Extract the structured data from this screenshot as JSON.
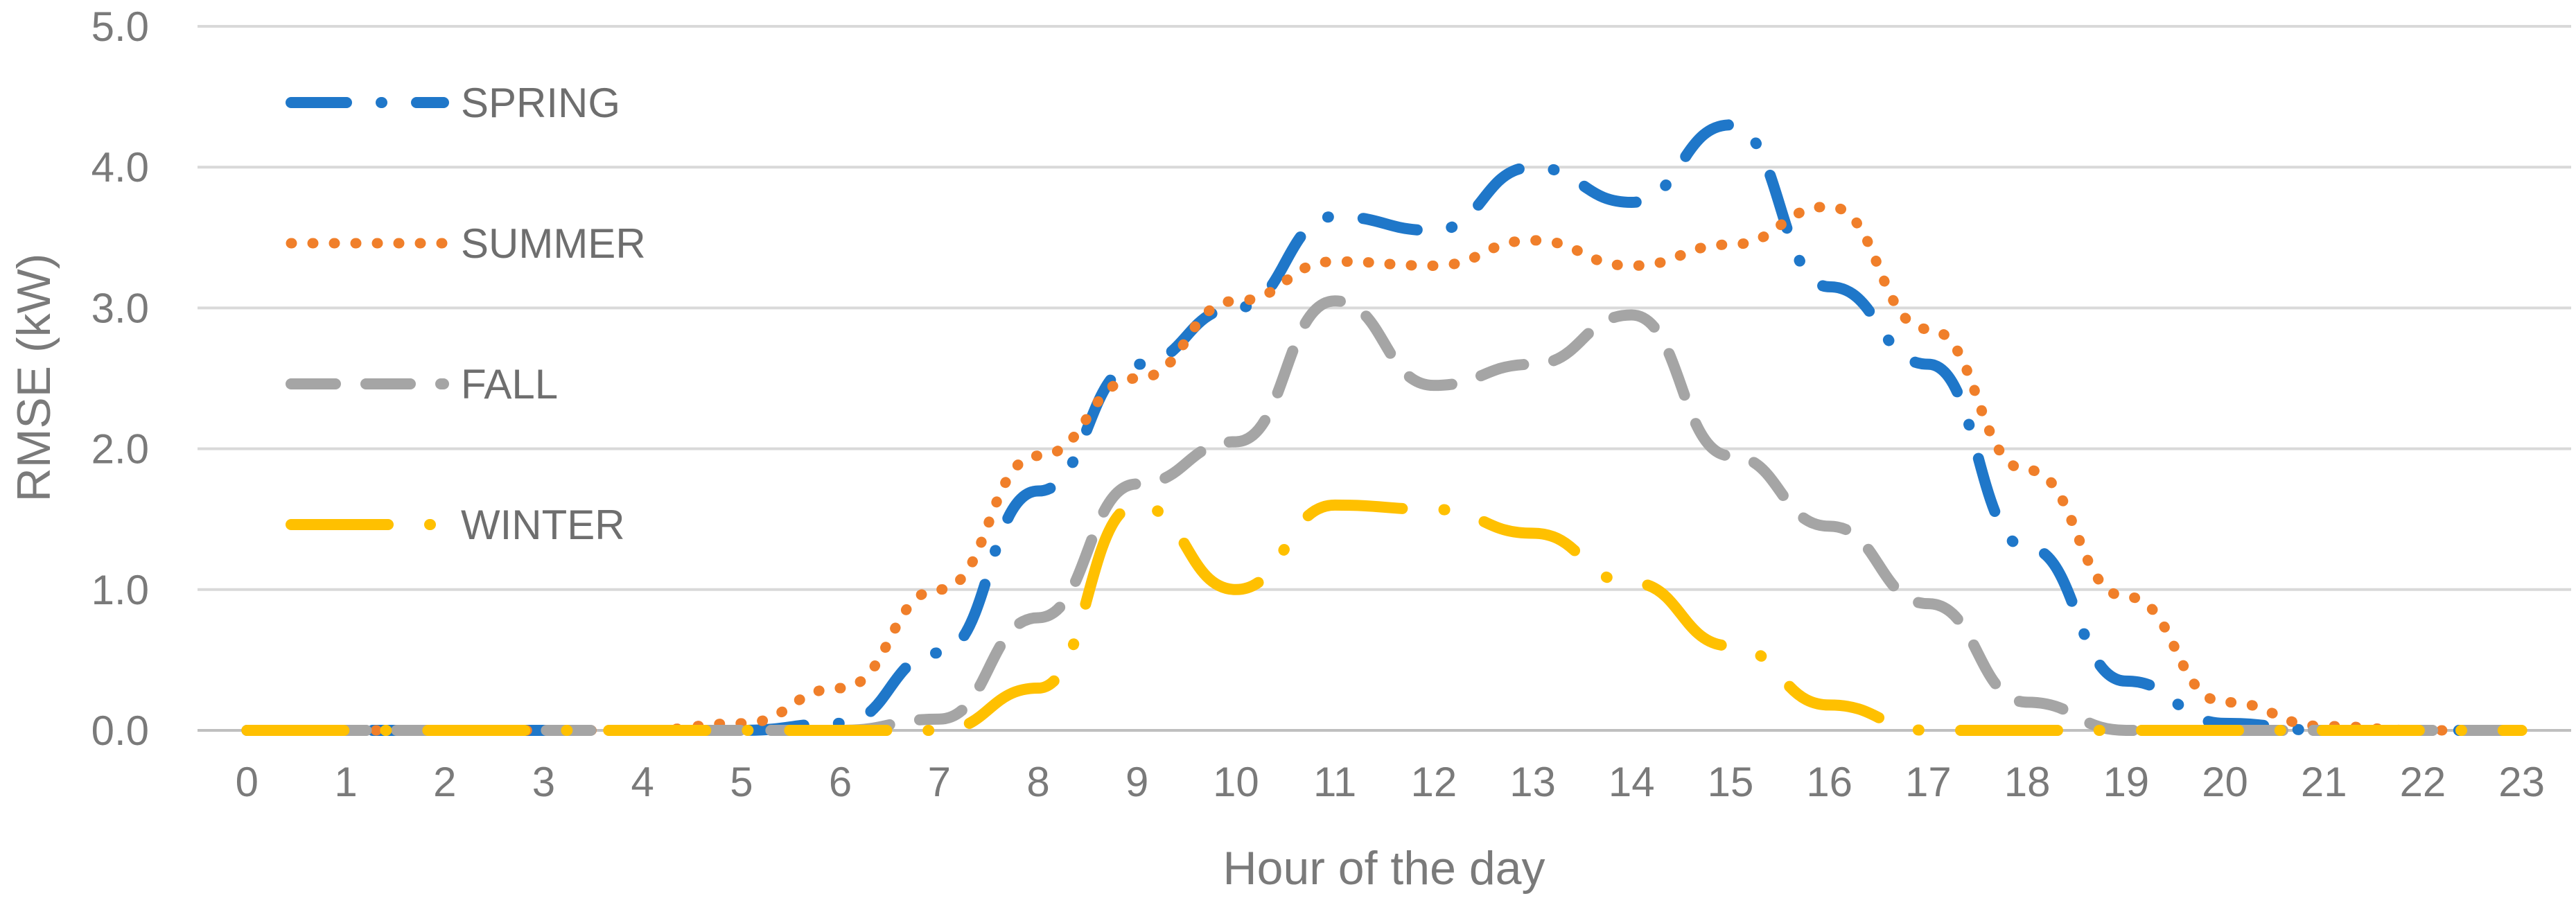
{
  "chart_data": {
    "type": "line",
    "xlabel": "Hour of the day",
    "ylabel": "RMSE (kW)",
    "x": [
      0,
      1,
      2,
      3,
      4,
      5,
      6,
      7,
      8,
      9,
      10,
      11,
      12,
      13,
      14,
      15,
      16,
      17,
      18,
      19,
      20,
      21,
      22,
      23
    ],
    "ylim": [
      0,
      5
    ],
    "yticks": [
      "0.0",
      "1.0",
      "2.0",
      "3.0",
      "4.0",
      "5.0"
    ],
    "grid": true,
    "legend_position": "top-left",
    "series": [
      {
        "name": "SPRING",
        "color": "#1f77c9",
        "style": "dash-dot",
        "values": [
          0,
          0,
          0,
          0,
          0,
          0,
          0.05,
          0.55,
          1.7,
          2.6,
          3.0,
          3.65,
          3.55,
          4.0,
          3.75,
          4.3,
          3.15,
          2.6,
          1.3,
          0.35,
          0.05,
          0,
          0,
          0
        ]
      },
      {
        "name": "SUMMER",
        "color": "#f07f2a",
        "style": "dot",
        "values": [
          0,
          0,
          0,
          0,
          0,
          0.05,
          0.3,
          1.0,
          1.95,
          2.5,
          3.05,
          3.33,
          3.3,
          3.48,
          3.3,
          3.45,
          3.72,
          2.85,
          1.85,
          0.95,
          0.2,
          0.03,
          0,
          0
        ]
      },
      {
        "name": "FALL",
        "color": "#a5a5a5",
        "style": "dash",
        "values": [
          0,
          0,
          0,
          0,
          0,
          0,
          0,
          0.08,
          0.8,
          1.75,
          2.05,
          3.05,
          2.45,
          2.6,
          2.95,
          1.95,
          1.45,
          0.9,
          0.2,
          0,
          0,
          0,
          0,
          0
        ]
      },
      {
        "name": "WINTER",
        "color": "#ffc000",
        "style": "long-dash-dot",
        "values": [
          0,
          0,
          0,
          0,
          0,
          0,
          0,
          0,
          0.3,
          1.6,
          1.0,
          1.6,
          1.57,
          1.4,
          1.05,
          0.6,
          0.18,
          0,
          0,
          0,
          0,
          0,
          0,
          0
        ]
      }
    ]
  }
}
